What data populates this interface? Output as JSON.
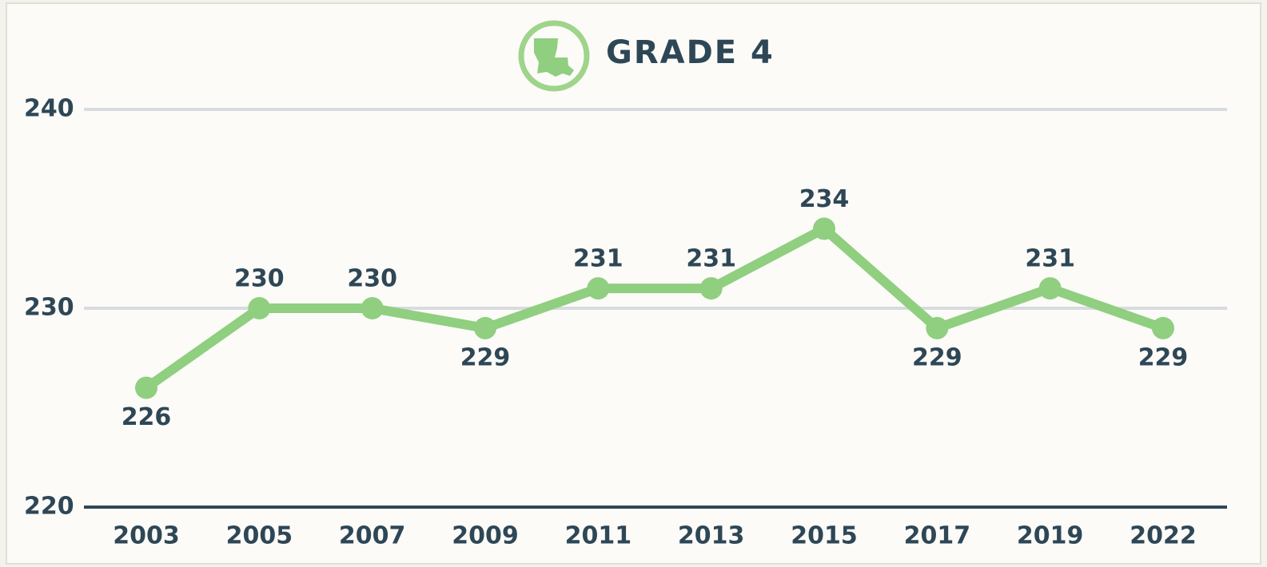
{
  "chart_data": {
    "type": "line",
    "title": "GRADE 4",
    "categories": [
      "2003",
      "2005",
      "2007",
      "2009",
      "2011",
      "2013",
      "2015",
      "2017",
      "2019",
      "2022"
    ],
    "series": [
      {
        "name": "Grade 4",
        "color": "#8fcf7f",
        "values": [
          226,
          230,
          230,
          229,
          231,
          231,
          234,
          229,
          231,
          229
        ]
      }
    ],
    "ylim": [
      220,
      240
    ],
    "yticks": [
      220,
      230,
      240
    ],
    "grid": true,
    "data_labels": true
  }
}
